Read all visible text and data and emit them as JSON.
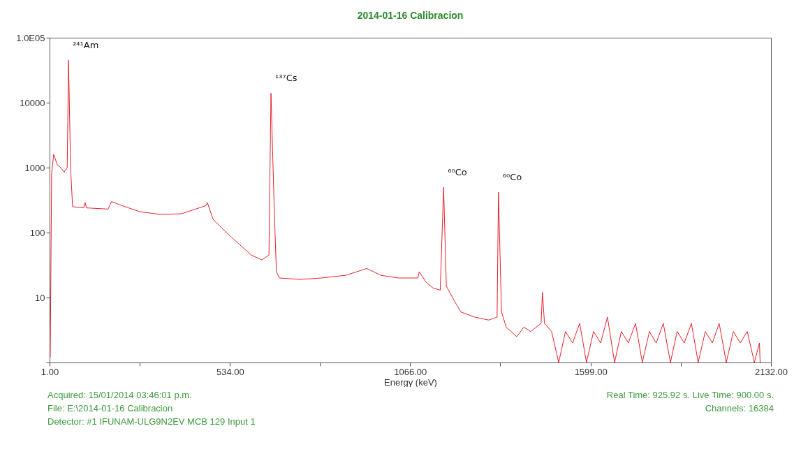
{
  "chart_data": {
    "type": "line",
    "title": "2014-01-16 Calibracion",
    "xlabel": "Energy (keV)",
    "x": [
      3,
      7,
      13,
      24,
      34,
      44,
      53,
      57,
      63,
      69,
      102,
      106,
      110,
      174,
      184,
      215,
      267,
      329,
      391,
      432,
      463,
      467,
      484,
      515,
      556,
      597,
      628,
      649,
      655,
      665,
      671,
      680,
      742,
      804,
      876,
      938,
      980,
      1031,
      1089,
      1093,
      1114,
      1134,
      1155,
      1165,
      1173,
      1196,
      1216,
      1257,
      1298,
      1323,
      1327,
      1336,
      1350,
      1381,
      1402,
      1422,
      1453,
      1457,
      1463,
      1484,
      1505,
      1525,
      1546,
      1567,
      1587,
      1608,
      1629,
      1649,
      1670,
      1690,
      1711,
      1732,
      1752,
      1773,
      1793,
      1814,
      1835,
      1855,
      1876,
      1897,
      1917,
      1938,
      1959,
      1979,
      2000,
      2021,
      2041,
      2062,
      2083,
      2098,
      2100
    ],
    "series": [
      {
        "color": "#e8202a",
        "values": [
          1.2,
          800,
          1600,
          1100,
          1000,
          850,
          1000,
          45000,
          1000,
          250,
          240,
          290,
          240,
          230,
          300,
          260,
          210,
          190,
          195,
          230,
          260,
          290,
          160,
          110,
          70,
          45,
          38,
          45,
          14000,
          200,
          25,
          20,
          19,
          20,
          22,
          28,
          22,
          20,
          20,
          25,
          17,
          14,
          13,
          500,
          15,
          9,
          6,
          5,
          4.5,
          5,
          420,
          6,
          3.5,
          2.5,
          3.5,
          3,
          4,
          12,
          4,
          3,
          1,
          3,
          2,
          4,
          1,
          3,
          2,
          5,
          1,
          3,
          2,
          4,
          1,
          3,
          2,
          4,
          1,
          3,
          2,
          4,
          1,
          3,
          2,
          4,
          1,
          3,
          2,
          3,
          1,
          2,
          1
        ]
      }
    ],
    "xlim": [
      1,
      2132
    ],
    "xticks": [
      {
        "value": 1,
        "label": "1.00"
      },
      {
        "value": 267,
        "label": null
      },
      {
        "value": 534,
        "label": "534.00"
      },
      {
        "value": 800,
        "label": null
      },
      {
        "value": 1066,
        "label": "1066.00"
      },
      {
        "value": 1332,
        "label": null
      },
      {
        "value": 1599,
        "label": "1599.00"
      },
      {
        "value": 1865,
        "label": null
      },
      {
        "value": 2132,
        "label": "2132.00"
      }
    ],
    "ylim": [
      1,
      100000
    ],
    "yticks": [
      {
        "value": 1,
        "label": null
      },
      10,
      100,
      1000,
      10000,
      {
        "value": 100000,
        "label": "1.0E05"
      }
    ],
    "log": "y",
    "grid": false,
    "marker": "none",
    "line_style": "solid",
    "annotations": [
      {
        "text": "²⁴¹Am",
        "x": 57,
        "y": 45000
      },
      {
        "text": "¹³⁷Cs",
        "x": 655,
        "y": 14000
      },
      {
        "text": "⁶⁰Co",
        "x": 1165,
        "y": 500
      },
      {
        "text": "⁶⁰Co",
        "x": 1327,
        "y": 420
      },
      "Acquired: 15/01/2014 03:46:01 p.m.",
      "Real Time: 925.92 s.  Live Time: 900.00 s.",
      "File: E:\\2014-01-16 Calibracion",
      "Channels: 16384",
      "Detector: #1 IFUNAM-ULG9N2EV MCB 129 Input 1"
    ]
  }
}
